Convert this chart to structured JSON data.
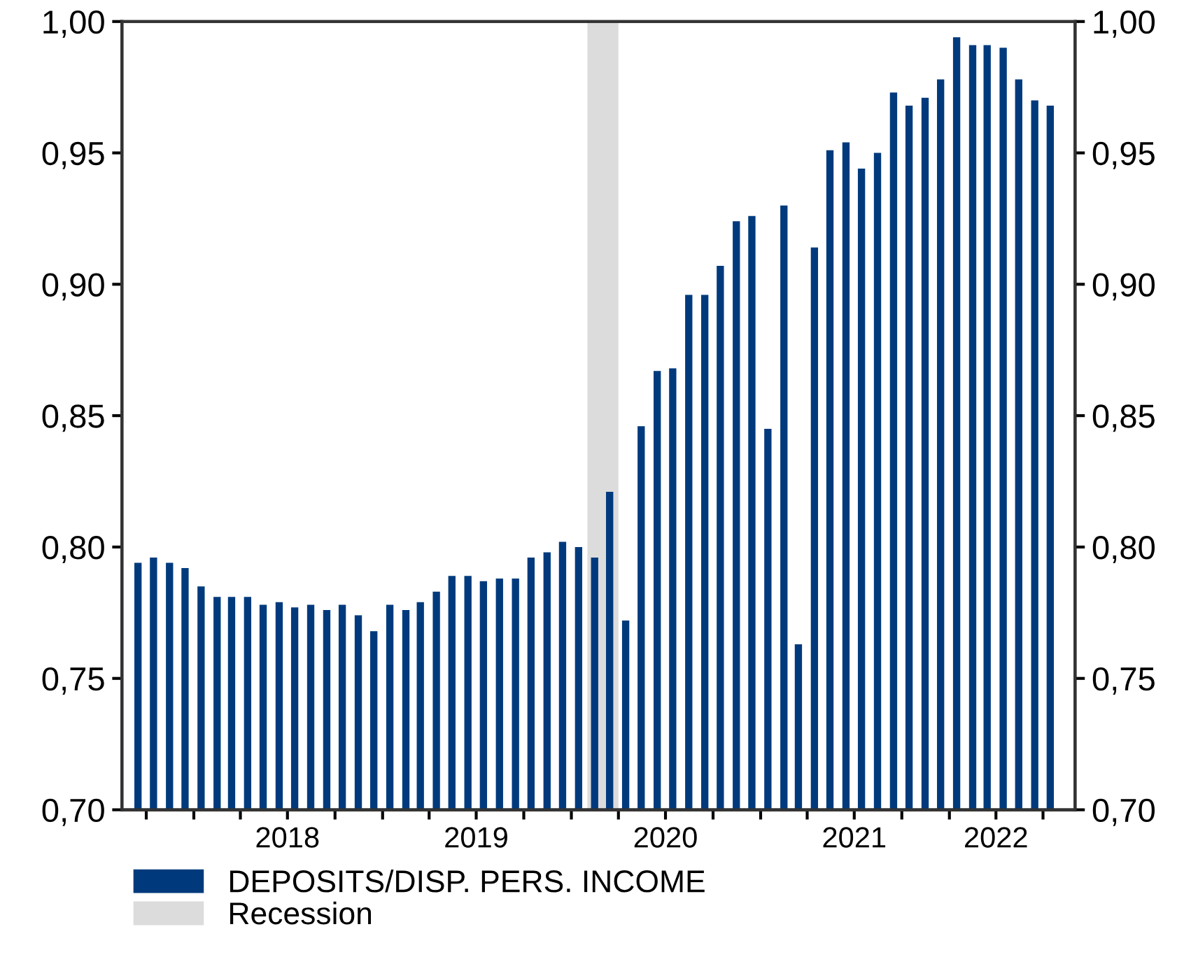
{
  "chart_data": {
    "type": "bar",
    "x": [
      "2017-09-15",
      "2017-10-15",
      "2017-11-15",
      "2017-12-15",
      "2018-01-15",
      "2018-02-15",
      "2018-03-15",
      "2018-04-15",
      "2018-05-15",
      "2018-06-15",
      "2018-07-15",
      "2018-08-15",
      "2018-09-15",
      "2018-10-15",
      "2018-11-15",
      "2018-12-15",
      "2019-01-15",
      "2019-02-15",
      "2019-03-15",
      "2019-04-15",
      "2019-05-15",
      "2019-06-15",
      "2019-07-15",
      "2019-08-15",
      "2019-09-15",
      "2019-10-15",
      "2019-11-15",
      "2019-12-15",
      "2020-01-15",
      "2020-02-15",
      "2020-03-15",
      "2020-04-15",
      "2020-05-15",
      "2020-06-15",
      "2020-07-15",
      "2020-08-15",
      "2020-09-15",
      "2020-10-15",
      "2020-11-15",
      "2020-12-15",
      "2021-01-15",
      "2021-02-15",
      "2021-03-15",
      "2021-04-15",
      "2021-05-15",
      "2021-06-15",
      "2021-07-15",
      "2021-08-15",
      "2021-09-15",
      "2021-10-15",
      "2021-11-15",
      "2021-12-15",
      "2022-01-15",
      "2022-02-15",
      "2022-03-15",
      "2022-04-15",
      "2022-05-15",
      "2022-06-15",
      "2022-07-15"
    ],
    "series": [
      {
        "name": "DEPOSITS/DISP. PERS. INCOME",
        "color": "#003a7d",
        "values": [
          0.794,
          0.796,
          0.794,
          0.792,
          0.785,
          0.781,
          0.781,
          0.781,
          0.778,
          0.779,
          0.777,
          0.778,
          0.776,
          0.778,
          0.774,
          0.768,
          0.778,
          0.776,
          0.779,
          0.783,
          0.789,
          0.789,
          0.787,
          0.788,
          0.788,
          0.796,
          0.798,
          0.802,
          0.8,
          0.796,
          0.821,
          0.772,
          0.846,
          0.867,
          0.868,
          0.896,
          0.896,
          0.907,
          0.924,
          0.926,
          0.845,
          0.93,
          0.763,
          0.914,
          0.951,
          0.954,
          0.944,
          0.95,
          0.973,
          0.968,
          0.971,
          0.978,
          0.994,
          0.991,
          0.991,
          0.99,
          0.978,
          0.97,
          0.968
        ]
      }
    ],
    "xlim": [
      "2017-08-15",
      "2022-09-01"
    ],
    "xticks": [
      {
        "value": "2017-10-01",
        "label": null
      },
      {
        "value": "2018-01-01",
        "label": null
      },
      {
        "value": "2018-04-01",
        "label": null
      },
      {
        "value": "2018-07-01",
        "label": "2018"
      },
      {
        "value": "2018-10-01",
        "label": null
      },
      {
        "value": "2019-01-01",
        "label": null
      },
      {
        "value": "2019-04-01",
        "label": null
      },
      {
        "value": "2019-07-01",
        "label": "2019"
      },
      {
        "value": "2019-10-01",
        "label": null
      },
      {
        "value": "2020-01-01",
        "label": null
      },
      {
        "value": "2020-04-01",
        "label": null
      },
      {
        "value": "2020-07-01",
        "label": "2020"
      },
      {
        "value": "2020-10-01",
        "label": null
      },
      {
        "value": "2021-01-01",
        "label": null
      },
      {
        "value": "2021-04-01",
        "label": null
      },
      {
        "value": "2021-07-01",
        "label": "2021"
      },
      {
        "value": "2021-10-01",
        "label": null
      },
      {
        "value": "2022-01-01",
        "label": null
      },
      {
        "value": "2022-04-01",
        "label": "2022"
      },
      {
        "value": "2022-07-01",
        "label": null
      }
    ],
    "ylim": [
      0.7,
      1.0
    ],
    "yticks": [
      {
        "value": 0.7,
        "label": "0,70"
      },
      {
        "value": 0.75,
        "label": "0,75"
      },
      {
        "value": 0.8,
        "label": "0,80"
      },
      {
        "value": 0.85,
        "label": "0,85"
      },
      {
        "value": 0.9,
        "label": "0,90"
      },
      {
        "value": 0.95,
        "label": "0,95"
      },
      {
        "value": 1.0,
        "label": "1,00"
      }
    ],
    "y2lim": [
      0.7,
      1.0
    ],
    "y2ticks": [
      {
        "value": 0.7,
        "label": "0,70"
      },
      {
        "value": 0.75,
        "label": "0,75"
      },
      {
        "value": 0.8,
        "label": "0,80"
      },
      {
        "value": 0.85,
        "label": "0,85"
      },
      {
        "value": 0.9,
        "label": "0,90"
      },
      {
        "value": 0.95,
        "label": "0,95"
      },
      {
        "value": 1.0,
        "label": "1,00"
      }
    ],
    "bands": [
      {
        "axis": "x",
        "from": "2020-02-01",
        "to": "2020-04-01",
        "label": "Recession",
        "color": "#dcdcdc"
      }
    ],
    "grid": false,
    "legend": "bottom"
  }
}
